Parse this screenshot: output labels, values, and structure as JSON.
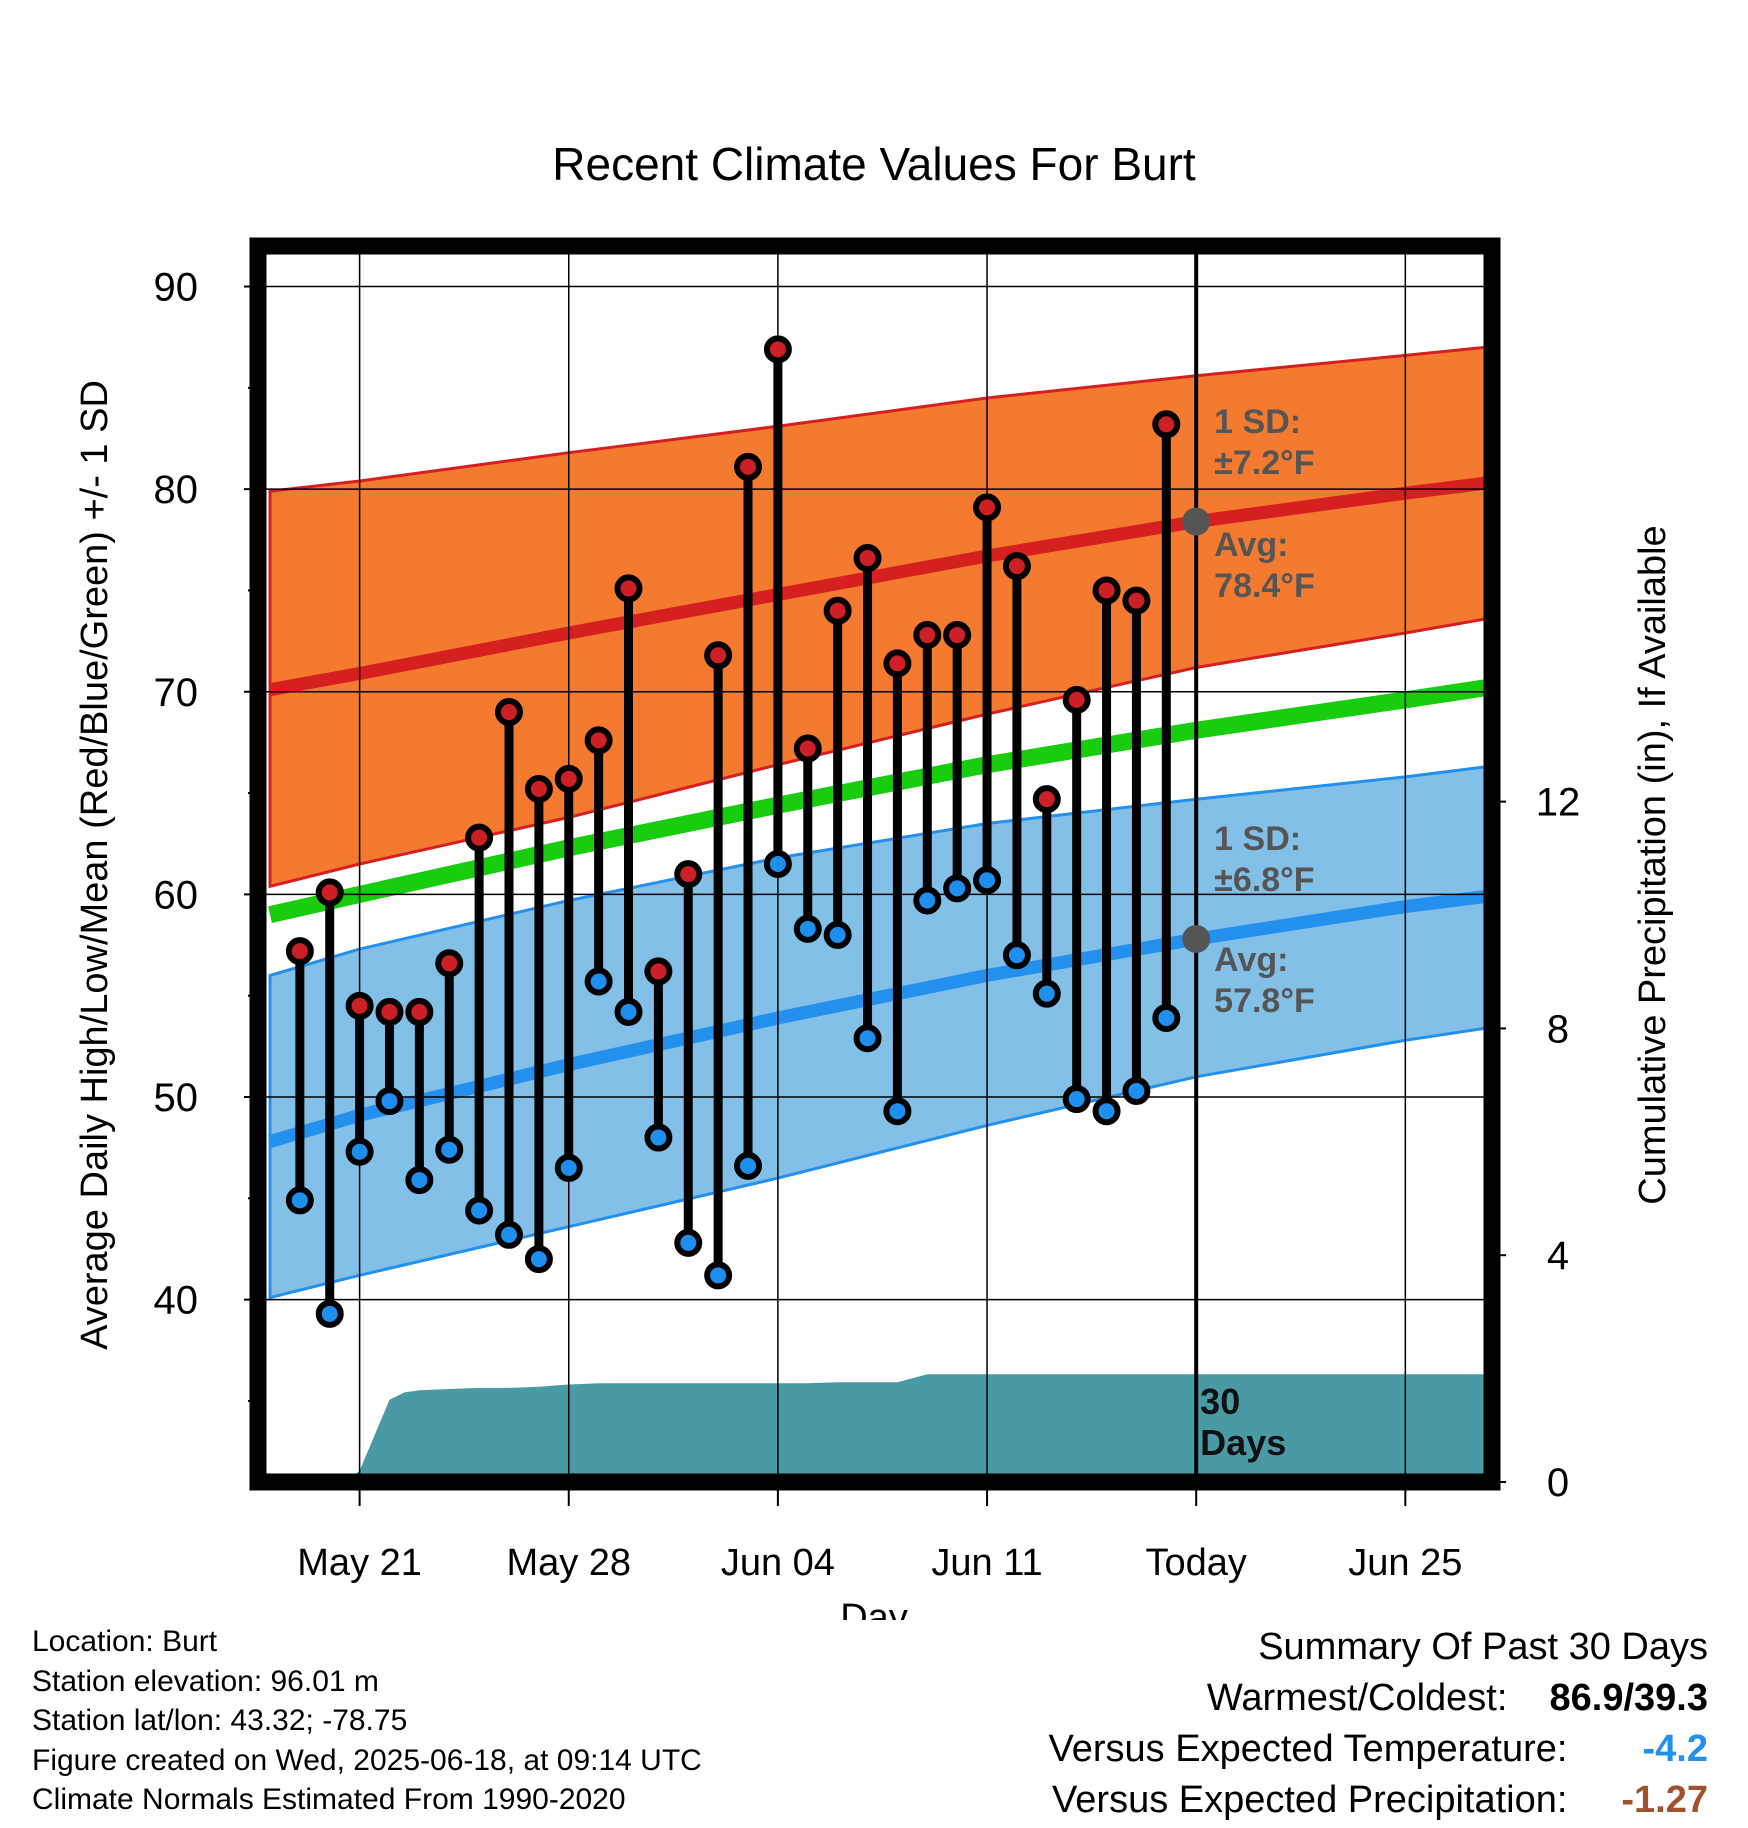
{
  "chart_data": {
    "type": "line",
    "title": "Recent Climate Values For Burt",
    "xlabel": "Day",
    "ylabel": "Average Daily High/Low/Mean (Red/Blue/Green) +/- 1 SD",
    "y2label": "Cumulative Precipitation (in), If Available",
    "x_tick_labels": [
      "May 21",
      "May 28",
      "Jun 04",
      "Jun 11",
      "Today",
      "Jun 25"
    ],
    "x_tick_days": [
      -28,
      -21,
      -14,
      -7,
      0,
      7
    ],
    "xlim_days": [
      -31.2,
      9.7
    ],
    "ylim": [
      31,
      92
    ],
    "yticks": [
      40,
      50,
      60,
      70,
      80,
      90
    ],
    "y2lim": [
      0,
      21.8
    ],
    "y2ticks": [
      0,
      4,
      8,
      12
    ],
    "grid": true,
    "colors": {
      "high_band": "#f47a30",
      "high_line": "#d62020",
      "low_band": "#82c0e8",
      "low_line": "#2390ee",
      "mean_line": "#18cc0e",
      "precip": "#4a9aa6",
      "marker_high": "#cc1f26",
      "marker_low": "#1e8fef",
      "today_marker": "#555555",
      "annotation": "#555555"
    },
    "normal_curves": {
      "days": [
        -31,
        -28,
        -21,
        -14,
        -7,
        0,
        7,
        9.7
      ],
      "high_avg": [
        70.1,
        70.9,
        72.9,
        74.8,
        76.7,
        78.4,
        79.8,
        80.3
      ],
      "high_sd_upper": [
        79.9,
        80.4,
        81.8,
        83.1,
        84.5,
        85.6,
        86.6,
        87.0
      ],
      "high_sd_lower": [
        60.4,
        61.5,
        63.8,
        66.4,
        68.9,
        71.2,
        72.9,
        73.6
      ],
      "low_avg": [
        47.8,
        49.1,
        51.6,
        53.9,
        56.0,
        57.8,
        59.4,
        59.9
      ],
      "low_sd_upper": [
        56.0,
        57.3,
        59.7,
        61.8,
        63.5,
        64.7,
        65.8,
        66.3
      ],
      "low_sd_lower": [
        40.1,
        41.2,
        43.6,
        46.0,
        48.6,
        51.0,
        52.8,
        53.4
      ],
      "mean": [
        59.0,
        60.0,
        62.3,
        64.4,
        66.4,
        68.1,
        69.6,
        70.2
      ]
    },
    "series": [
      {
        "name": "High",
        "days": [
          -30,
          -29,
          -28,
          -27,
          -26,
          -25,
          -24,
          -23,
          -22,
          -21,
          -20,
          -19,
          -18,
          -17,
          -16,
          -15,
          -14,
          -13,
          -12,
          -11,
          -10,
          -9,
          -8,
          -7,
          -6,
          -5,
          -4,
          -3,
          -2,
          -1
        ],
        "values": [
          57.2,
          60.1,
          54.5,
          54.2,
          54.2,
          56.6,
          62.8,
          69.0,
          65.2,
          65.7,
          67.6,
          75.1,
          56.2,
          61.0,
          71.8,
          81.1,
          86.9,
          67.2,
          74.0,
          76.6,
          71.4,
          72.8,
          72.8,
          79.1,
          76.2,
          64.7,
          69.6,
          75.0,
          74.5,
          83.2
        ]
      },
      {
        "name": "Low",
        "days": [
          -30,
          -29,
          -28,
          -27,
          -26,
          -25,
          -24,
          -23,
          -22,
          -21,
          -20,
          -19,
          -18,
          -17,
          -16,
          -15,
          -14,
          -13,
          -12,
          -11,
          -10,
          -9,
          -8,
          -7,
          -6,
          -5,
          -4,
          -3,
          -2,
          -1
        ],
        "values": [
          44.9,
          39.3,
          47.3,
          49.8,
          45.9,
          47.4,
          44.4,
          43.2,
          42.0,
          46.5,
          55.7,
          54.2,
          48.0,
          42.8,
          41.2,
          46.6,
          61.5,
          58.3,
          58.0,
          52.9,
          49.3,
          59.7,
          60.3,
          60.7,
          57.0,
          55.1,
          49.9,
          49.3,
          50.3,
          53.9
        ]
      },
      {
        "name": "Cumulative Precipitation",
        "days": [
          -28.5,
          -28,
          -27,
          -26.5,
          -26,
          -25,
          -24,
          -23,
          -22,
          -21,
          -20,
          -19,
          -18,
          -17,
          -16,
          -15,
          -14,
          -13,
          -12,
          -11,
          -10,
          -9,
          -8,
          -7,
          -6,
          -5,
          -4,
          -3,
          -2,
          -1,
          9.7
        ],
        "values": [
          0.0,
          0.2,
          1.45,
          1.58,
          1.62,
          1.64,
          1.66,
          1.66,
          1.68,
          1.72,
          1.74,
          1.74,
          1.74,
          1.74,
          1.74,
          1.74,
          1.74,
          1.74,
          1.76,
          1.76,
          1.76,
          1.9,
          1.9,
          1.9,
          1.9,
          1.9,
          1.9,
          1.9,
          1.9,
          1.9,
          1.9
        ]
      }
    ],
    "annotations": {
      "high_sd": [
        "1 SD:",
        "±7.2°F"
      ],
      "high_avg": [
        "Avg:",
        "78.4°F"
      ],
      "low_sd": [
        "1 SD:",
        "±6.8°F"
      ],
      "low_avg": [
        "Avg:",
        "57.8°F"
      ],
      "window": [
        "30",
        "Days"
      ],
      "today_high_avg": 78.4,
      "today_low_avg": 57.8
    }
  },
  "station_info": [
    "Location: Burt",
    "Station elevation: 96.01 m",
    "Station lat/lon: 43.32; -78.75",
    "Figure created on Wed, 2025-06-18, at 09:14 UTC",
    "Climate Normals Estimated From 1990-2020"
  ],
  "summary": {
    "heading": "Summary Of Past 30 Days",
    "warmest_coldest_label": "Warmest/Coldest:",
    "warmest_coldest_value": "86.9/39.3",
    "temp_label": "Versus Expected Temperature:",
    "temp_value": "-4.2",
    "temp_color": "#2390ee",
    "precip_label": "Versus Expected Precipitation:",
    "precip_value": "-1.27",
    "precip_color": "#a0522d"
  }
}
